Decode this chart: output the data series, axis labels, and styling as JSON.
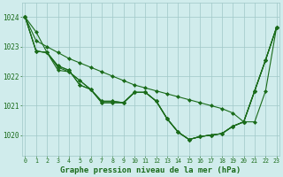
{
  "background_color": "#d0ecec",
  "grid_color": "#a0c8c8",
  "line_color": "#1a6b1a",
  "marker_color": "#1a6b1a",
  "xlabel": "Graphe pression niveau de la mer (hPa)",
  "xlabel_color": "#1a6b1a",
  "ylabel_ticks": [
    1020,
    1021,
    1022,
    1023,
    1024
  ],
  "xticks": [
    0,
    1,
    2,
    3,
    4,
    5,
    6,
    7,
    8,
    9,
    10,
    11,
    12,
    13,
    14,
    15,
    16,
    17,
    18,
    19,
    20,
    21,
    22,
    23
  ],
  "xlim": [
    -0.3,
    23.3
  ],
  "ylim": [
    1019.3,
    1024.5
  ],
  "series": [
    [
      1024.0,
      1023.5,
      1022.8,
      1022.2,
      1022.15,
      1021.85,
      1021.55,
      1021.1,
      1021.1,
      1021.1,
      1021.45,
      1021.45,
      1021.15,
      1020.55,
      1020.1,
      1019.85,
      1019.95,
      1020.0,
      1020.05,
      1020.3,
      1020.45,
      1021.5,
      1022.55,
      1023.65
    ],
    [
      1024.0,
      1022.85,
      1022.8,
      1022.3,
      1022.15,
      1021.85,
      1021.55,
      1021.1,
      1021.1,
      1021.1,
      1021.45,
      1021.45,
      1021.15,
      1020.55,
      1020.1,
      1019.85,
      1019.95,
      1020.0,
      1020.05,
      1020.3,
      1020.45,
      1021.5,
      1022.55,
      1023.65
    ],
    [
      1024.0,
      1022.85,
      1022.8,
      1022.35,
      1022.2,
      1021.7,
      1021.55,
      1021.15,
      1021.15,
      1021.1,
      1021.45,
      1021.45,
      1021.15,
      1020.55,
      1020.1,
      1019.85,
      1019.95,
      1020.0,
      1020.05,
      1020.3,
      1020.45,
      1021.5,
      1022.55,
      1023.65
    ],
    [
      1024.0,
      1022.85,
      1022.8,
      1022.35,
      1022.2,
      1021.7,
      1021.55,
      1021.15,
      1021.15,
      1021.1,
      1021.45,
      1021.45,
      1021.15,
      1020.55,
      1020.1,
      1019.85,
      1019.95,
      1020.0,
      1020.05,
      1020.3,
      1020.45,
      1021.5,
      1022.55,
      1023.65
    ]
  ],
  "straight_line": [
    1024.0,
    1023.2,
    1023.0,
    1022.8,
    1022.6,
    1022.45,
    1022.3,
    1022.15,
    1022.0,
    1021.85,
    1021.7,
    1021.6,
    1021.5,
    1021.4,
    1021.3,
    1021.2,
    1021.1,
    1021.0,
    1020.9,
    1020.75,
    1020.45,
    1020.45,
    1021.5,
    1023.65
  ]
}
